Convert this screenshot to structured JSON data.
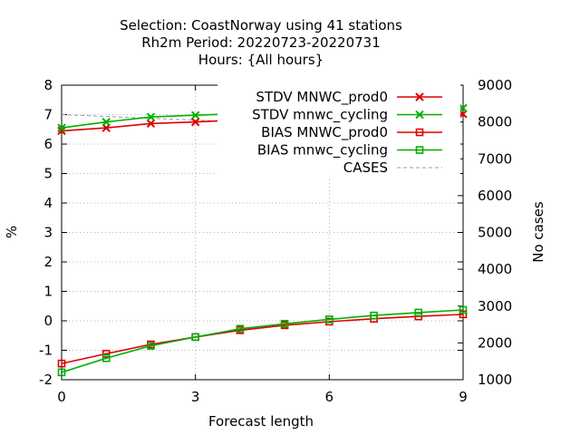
{
  "title_lines": [
    "Selection: CoastNorway using    41 stations",
    "Rh2m   Period: 20220723-20220731",
    "Hours: {All hours}"
  ],
  "chart_data": {
    "type": "line",
    "xlabel": "Forecast length",
    "ylabel": "%",
    "y2label": "No cases",
    "xlim": [
      0,
      9
    ],
    "ylim": [
      -2,
      8
    ],
    "y2lim": [
      1000,
      9000
    ],
    "xticks": [
      0,
      3,
      6,
      9
    ],
    "yticks": [
      -2,
      -1,
      0,
      1,
      2,
      3,
      4,
      5,
      6,
      7,
      8
    ],
    "y2ticks": [
      1000,
      2000,
      3000,
      4000,
      5000,
      6000,
      7000,
      8000,
      9000
    ],
    "grid": true,
    "legend_position": "top-right",
    "x": [
      0,
      1,
      2,
      3,
      4,
      5,
      6,
      7,
      8,
      9
    ],
    "series": [
      {
        "name": "STDV MNWC_prod0",
        "marker": "x",
        "color": "#e00000",
        "axis": "y",
        "values": [
          6.45,
          6.55,
          6.7,
          6.75,
          6.82,
          6.87,
          6.9,
          6.93,
          6.97,
          7.02
        ]
      },
      {
        "name": "STDV mnwc_cycling",
        "marker": "x",
        "color": "#00b000",
        "axis": "y",
        "values": [
          6.55,
          6.75,
          6.92,
          6.98,
          7.03,
          7.07,
          7.1,
          7.14,
          7.18,
          7.22
        ]
      },
      {
        "name": "BIAS MNWC_prod0",
        "marker": "square",
        "color": "#e00000",
        "axis": "y",
        "values": [
          -1.45,
          -1.12,
          -0.8,
          -0.55,
          -0.32,
          -0.15,
          -0.03,
          0.07,
          0.15,
          0.22
        ]
      },
      {
        "name": "BIAS mnwc_cycling",
        "marker": "square",
        "color": "#00b000",
        "axis": "y",
        "values": [
          -1.75,
          -1.27,
          -0.85,
          -0.55,
          -0.27,
          -0.1,
          0.05,
          0.18,
          0.28,
          0.37
        ]
      },
      {
        "name": "CASES",
        "marker": "none",
        "color": "#999999",
        "dashed": true,
        "axis": "y2",
        "values": [
          8200,
          8150,
          8100,
          8050,
          8010,
          7980,
          7960,
          7940,
          7920,
          7900
        ]
      }
    ]
  }
}
